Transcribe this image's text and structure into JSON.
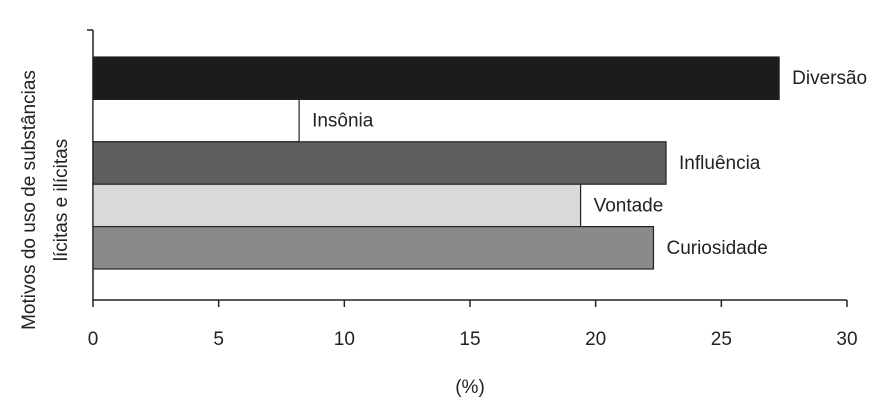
{
  "chart_data": {
    "type": "bar",
    "orientation": "horizontal",
    "ylabel": [
      "Motivos do uso de substâncias",
      "lícitas e ilícitas"
    ],
    "xlabel": "(%)",
    "categories": [
      "Diversão",
      "Insônia",
      "Influência",
      "Vontade",
      "Curiosidade"
    ],
    "values": [
      27.3,
      8.2,
      22.8,
      19.4,
      22.3
    ],
    "colors": [
      "#1c1c1c",
      "#ffffff",
      "#5f5f5f",
      "#d9d9d9",
      "#8a8a8a"
    ],
    "xlim": [
      0,
      30
    ],
    "xticks": [
      0,
      5,
      10,
      15,
      20,
      25,
      30
    ],
    "grid": false
  }
}
